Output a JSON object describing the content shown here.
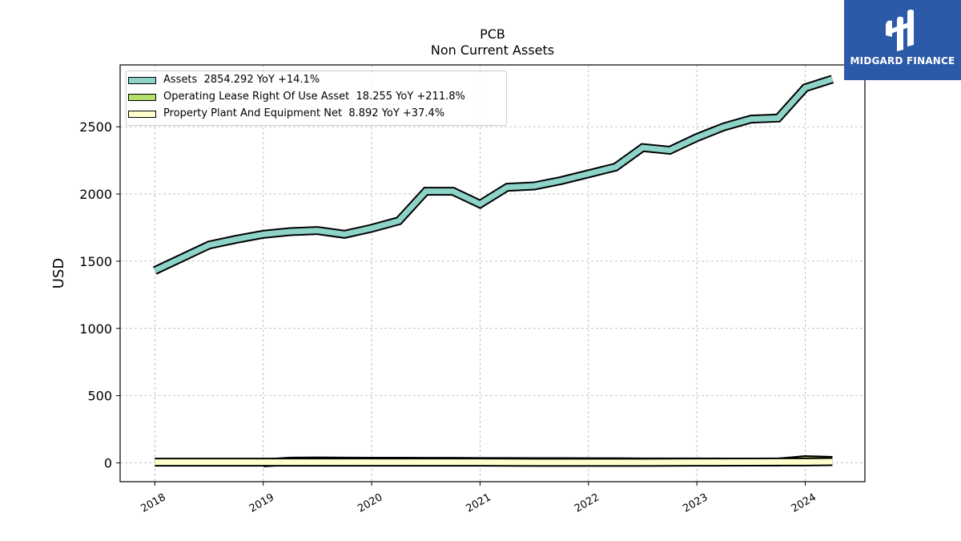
{
  "logo": {
    "text": "MIDGARD FINANCE",
    "name": "midgard-finance-logo",
    "color": "#2d5aa8"
  },
  "chart_data": {
    "type": "line",
    "title": "PCB",
    "subtitle": "Non Current  Assets",
    "xlabel": "",
    "ylabel": "USD",
    "ylim": [
      -140,
      2960
    ],
    "xlim": [
      2017.68,
      2024.55
    ],
    "yticks": [
      0,
      500,
      1000,
      1500,
      2000,
      2500
    ],
    "xticks": [
      "2018",
      "2019",
      "2020",
      "2021",
      "2022",
      "2023",
      "2024"
    ],
    "grid": true,
    "legend_position": "top-left",
    "series": [
      {
        "name": "Assets",
        "legend": "Assets  2854.292 YoY +14.1%",
        "color": "#8dd3c7",
        "x": [
          2018.0,
          2018.5,
          2018.75,
          2019.0,
          2019.25,
          2019.5,
          2019.75,
          2020.0,
          2020.25,
          2020.5,
          2020.75,
          2021.0,
          2021.25,
          2021.5,
          2021.75,
          2022.0,
          2022.25,
          2022.5,
          2022.75,
          2023.0,
          2023.25,
          2023.5,
          2023.75,
          2024.0,
          2024.25
        ],
        "y": [
          1430,
          1620,
          1663,
          1700,
          1720,
          1728,
          1700,
          1745,
          1800,
          2020,
          2020,
          1925,
          2050,
          2060,
          2100,
          2150,
          2200,
          2345,
          2325,
          2420,
          2500,
          2557,
          2565,
          2790,
          2854.292
        ]
      },
      {
        "name": "Operating Lease Right Of Use Asset",
        "legend": "Operating Lease Right Of Use Asset  18.255 YoY +211.8%",
        "color": "#b3de69",
        "x": [
          2019.0,
          2019.25,
          2019.5,
          2019.75,
          2020.0,
          2020.25,
          2020.5,
          2020.75,
          2021.0,
          2021.25,
          2021.5,
          2021.75,
          2022.0,
          2022.25,
          2022.5,
          2022.75,
          2023.0,
          2023.25,
          2023.5,
          2023.75,
          2024.0,
          2024.25
        ],
        "y": [
          0,
          13,
          14,
          13,
          12,
          12,
          11,
          11,
          10,
          10,
          9,
          9,
          8,
          8,
          7,
          7,
          7,
          6,
          6,
          6,
          24,
          18.255
        ]
      },
      {
        "name": "Property Plant And Equipment Net",
        "legend": "Property Plant And Equipment Net  8.892 YoY +37.4%",
        "color": "#ffffcc",
        "x": [
          2018.0,
          2018.5,
          2019.0,
          2019.5,
          2020.0,
          2020.5,
          2021.0,
          2021.5,
          2022.0,
          2022.5,
          2023.0,
          2023.5,
          2023.75,
          2024.0,
          2024.25
        ],
        "y": [
          5,
          5,
          5,
          5,
          5,
          5,
          5,
          4,
          4,
          4,
          5,
          6,
          6.5,
          7,
          8.892
        ]
      }
    ]
  }
}
